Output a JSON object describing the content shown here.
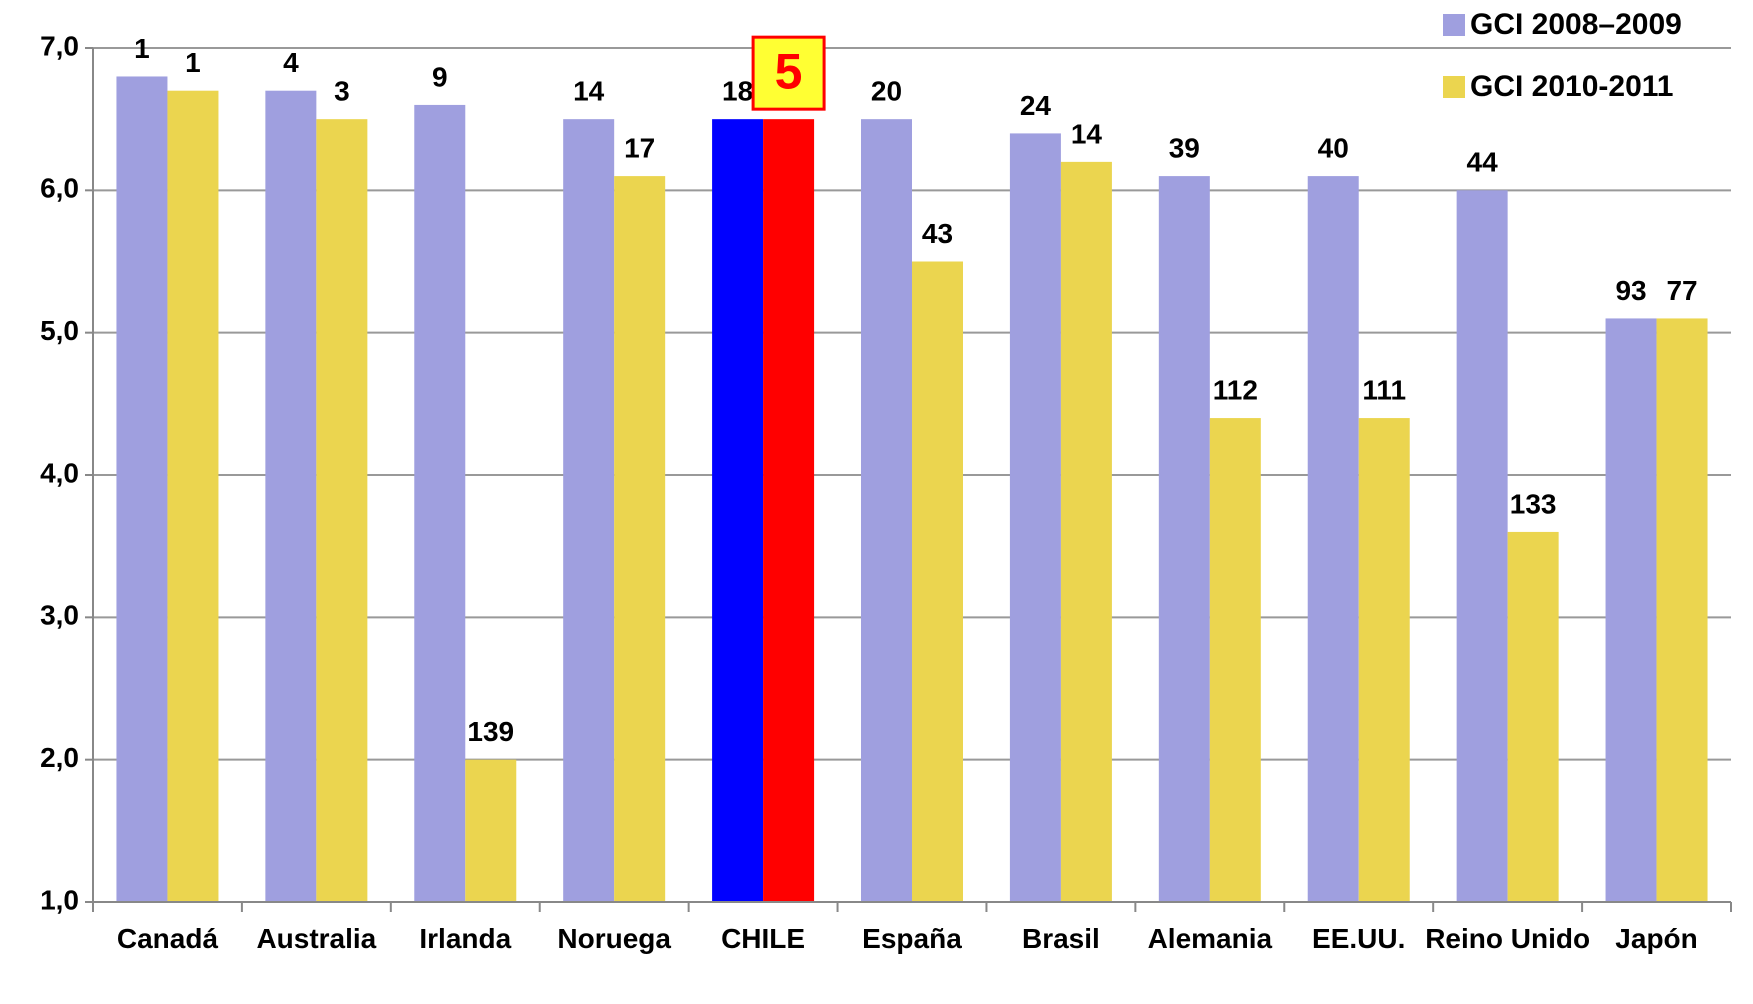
{
  "chart_data": {
    "type": "bar",
    "categories": [
      "Canadá",
      "Australia",
      "Irlanda",
      "Noruega",
      "CHILE",
      "España",
      "Brasil",
      "Alemania",
      "EE.UU.",
      "Reino Unido",
      "Japón"
    ],
    "series": [
      {
        "name": "GCI 2008–2009",
        "color": "#9f9fdf",
        "highlight_color": "#0000ff",
        "values": [
          6.8,
          6.7,
          6.6,
          6.5,
          6.5,
          6.5,
          6.4,
          6.1,
          6.1,
          6.0,
          5.1
        ],
        "ranks": [
          1,
          4,
          9,
          14,
          18,
          20,
          24,
          39,
          40,
          44,
          93
        ]
      },
      {
        "name": "GCI 2010-2011",
        "color": "#ebd54f",
        "highlight_color": "#ff0000",
        "values": [
          6.7,
          6.5,
          2.0,
          6.1,
          6.5,
          5.5,
          6.2,
          4.4,
          4.4,
          3.6,
          5.1
        ],
        "ranks": [
          1,
          3,
          139,
          17,
          5,
          43,
          14,
          112,
          111,
          133,
          77
        ]
      }
    ],
    "highlight": "CHILE",
    "ylim": [
      1,
      7
    ],
    "yticks": [
      {
        "value": 1,
        "label": "1,0"
      },
      {
        "value": 2,
        "label": "2,0"
      },
      {
        "value": 3,
        "label": "3,0"
      },
      {
        "value": 4,
        "label": "4,0"
      },
      {
        "value": 5,
        "label": "5,0"
      },
      {
        "value": 6,
        "label": "6,0"
      },
      {
        "value": 7,
        "label": "7,0"
      }
    ],
    "grid": true,
    "legend": "top-right"
  }
}
